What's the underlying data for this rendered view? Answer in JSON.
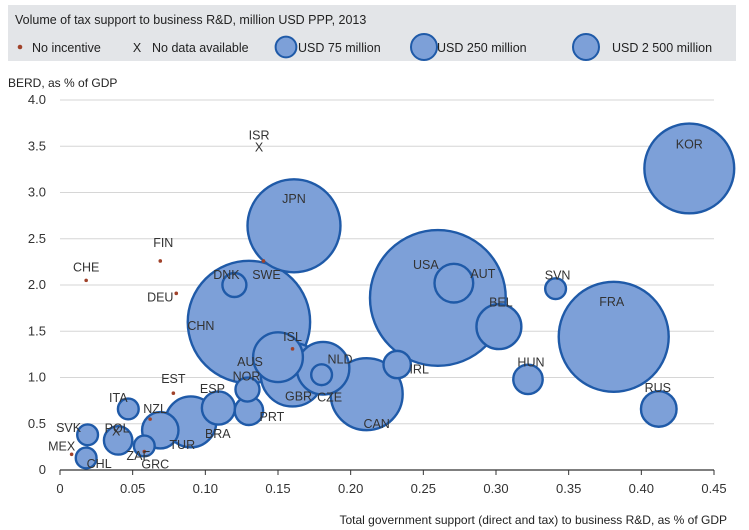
{
  "chart_data": {
    "type": "scatter",
    "title": "Volume of tax support to business R&D, million USD PPP, 2013",
    "xlabel": "Total government support (direct and tax) to business R&D, as % of GDP",
    "ylabel": "BERD, as % of GDP",
    "xlim": [
      0,
      0.45
    ],
    "ylim": [
      0,
      4.0
    ],
    "xticks": [
      "0",
      "0.05",
      "0.10",
      "0.15",
      "0.20",
      "0.25",
      "0.30",
      "0.35",
      "0.40",
      "0.45"
    ],
    "yticks": [
      "0",
      "0.5",
      "1.0",
      "1.5",
      "2.0",
      "2.5",
      "3.0",
      "3.5",
      "4.0"
    ],
    "grid": "horizontal",
    "legend": [
      {
        "label": "No incentive",
        "kind": "dot"
      },
      {
        "label": "No data available",
        "kind": "x",
        "symbol": "X"
      },
      {
        "label": "USD 75 million",
        "kind": "bubble",
        "size": 75
      },
      {
        "label": "USD 250 million",
        "kind": "bubble",
        "size": 250
      },
      {
        "label": "USD 2 500 million",
        "kind": "bubble",
        "size": 2500
      }
    ],
    "colors": {
      "bubble_fill": "#7da0d8",
      "bubble_stroke": "#1f5aa8",
      "no_incentive": "#a0422a",
      "no_data": "#444444"
    },
    "points": [
      {
        "label": "KOR",
        "x": 0.433,
        "y": 3.26,
        "kind": "bubble",
        "size": 1400
      },
      {
        "label": "ISR",
        "x": 0.137,
        "y": 3.5,
        "kind": "x"
      },
      {
        "label": "JPN",
        "x": 0.161,
        "y": 2.64,
        "kind": "bubble",
        "size": 1500
      },
      {
        "label": "FIN",
        "x": 0.069,
        "y": 2.26,
        "kind": "dot"
      },
      {
        "label": "SWE",
        "x": 0.14,
        "y": 2.26,
        "kind": "dot"
      },
      {
        "label": "CHE",
        "x": 0.018,
        "y": 2.05,
        "kind": "dot"
      },
      {
        "label": "DNK",
        "x": 0.12,
        "y": 2.0,
        "kind": "bubble",
        "size": 100
      },
      {
        "label": "DEU",
        "x": 0.08,
        "y": 1.91,
        "kind": "dot"
      },
      {
        "label": "USA",
        "x": 0.26,
        "y": 1.86,
        "kind": "bubble",
        "size": 3200
      },
      {
        "label": "AUT",
        "x": 0.271,
        "y": 2.02,
        "kind": "bubble",
        "size": 260
      },
      {
        "label": "SVN",
        "x": 0.341,
        "y": 1.96,
        "kind": "bubble",
        "size": 75
      },
      {
        "label": "CHN",
        "x": 0.13,
        "y": 1.6,
        "kind": "bubble",
        "size": 2600
      },
      {
        "label": "BEL",
        "x": 0.302,
        "y": 1.55,
        "kind": "bubble",
        "size": 350
      },
      {
        "label": "FRA",
        "x": 0.381,
        "y": 1.44,
        "kind": "bubble",
        "size": 2100
      },
      {
        "label": "ISL",
        "x": 0.16,
        "y": 1.31,
        "kind": "dot"
      },
      {
        "label": "AUS",
        "x": 0.15,
        "y": 1.22,
        "kind": "bubble",
        "size": 430
      },
      {
        "label": "NLD",
        "x": 0.181,
        "y": 1.1,
        "kind": "bubble",
        "size": 480
      },
      {
        "label": "IRL",
        "x": 0.232,
        "y": 1.14,
        "kind": "bubble",
        "size": 130
      },
      {
        "label": "GBR",
        "x": 0.16,
        "y": 1.03,
        "kind": "bubble",
        "size": 700
      },
      {
        "label": "CZE",
        "x": 0.18,
        "y": 1.03,
        "kind": "bubble",
        "size": 75
      },
      {
        "label": "HUN",
        "x": 0.322,
        "y": 0.98,
        "kind": "bubble",
        "size": 150
      },
      {
        "label": "NOR",
        "x": 0.129,
        "y": 0.87,
        "kind": "bubble",
        "size": 100
      },
      {
        "label": "EST",
        "x": 0.078,
        "y": 0.83,
        "kind": "dot"
      },
      {
        "label": "CAN",
        "x": 0.211,
        "y": 0.82,
        "kind": "bubble",
        "size": 900
      },
      {
        "label": "ESP",
        "x": 0.109,
        "y": 0.67,
        "kind": "bubble",
        "size": 190
      },
      {
        "label": "PRT",
        "x": 0.13,
        "y": 0.64,
        "kind": "bubble",
        "size": 140
      },
      {
        "label": "ITA",
        "x": 0.047,
        "y": 0.66,
        "kind": "bubble",
        "size": 75
      },
      {
        "label": "RUS",
        "x": 0.412,
        "y": 0.66,
        "kind": "bubble",
        "size": 220
      },
      {
        "label": "NZL",
        "x": 0.062,
        "y": 0.55,
        "kind": "dot"
      },
      {
        "label": "BRA",
        "x": 0.09,
        "y": 0.52,
        "kind": "bubble",
        "size": 450
      },
      {
        "label": "TUR",
        "x": 0.069,
        "y": 0.43,
        "kind": "bubble",
        "size": 230
      },
      {
        "label": "SVK",
        "x": 0.019,
        "y": 0.38,
        "kind": "bubble",
        "size": 75
      },
      {
        "label": "POL",
        "x": 0.04,
        "y": 0.32,
        "kind": "bubble",
        "size": 140
      },
      {
        "label": "X",
        "x": 0.038,
        "y": 0.33,
        "kind": "x"
      },
      {
        "label": "ZAF",
        "x": 0.058,
        "y": 0.26,
        "kind": "bubble",
        "size": 75
      },
      {
        "label": "GRC",
        "x": 0.058,
        "y": 0.2,
        "kind": "dot"
      },
      {
        "label": "MEX",
        "x": 0.008,
        "y": 0.17,
        "kind": "dot"
      },
      {
        "label": "CHL",
        "x": 0.018,
        "y": 0.13,
        "kind": "bubble",
        "size": 75
      }
    ]
  }
}
